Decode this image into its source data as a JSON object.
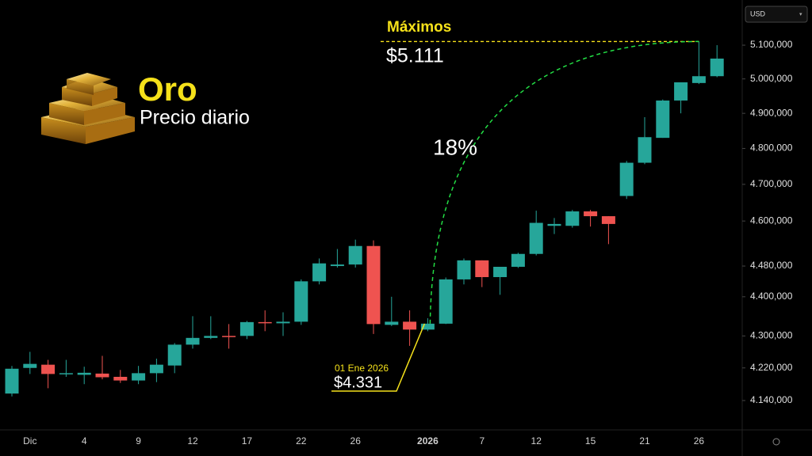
{
  "currency": "USD",
  "chart_data": {
    "type": "candlestick",
    "title": "Oro",
    "subtitle": "Precio diario",
    "log_scale": true,
    "up_color": "#26a69a",
    "down_color": "#ef5350",
    "categories": [
      null,
      "Dic",
      null,
      null,
      "4",
      null,
      null,
      "9",
      null,
      null,
      "12",
      null,
      null,
      "17",
      null,
      null,
      "22",
      null,
      null,
      "26",
      null,
      null,
      null,
      "2026",
      null,
      null,
      "7",
      null,
      null,
      "12",
      null,
      null,
      "15",
      null,
      null,
      "21",
      null,
      null,
      "26",
      null
    ],
    "open": [
      4157,
      4220,
      4228,
      4205,
      4203,
      4206,
      4198,
      4189,
      4207,
      4226,
      4278,
      4295,
      4300,
      4300,
      4335,
      4332,
      4336,
      4440,
      4480,
      4484,
      4533,
      4328,
      4336,
      4316,
      4331,
      4445,
      4495,
      4451,
      4478,
      4512,
      4587,
      4587,
      4626,
      4613,
      4668,
      4760,
      4830,
      4937,
      4988,
      5008
    ],
    "high": [
      4225,
      4260,
      4240,
      4240,
      4223,
      4250,
      4215,
      4225,
      4243,
      4282,
      4350,
      4350,
      4330,
      4338,
      4365,
      4360,
      4445,
      4500,
      4525,
      4550,
      4548,
      4400,
      4365,
      4345,
      4450,
      4500,
      4495,
      4478,
      4515,
      4628,
      4608,
      4630,
      4630,
      4613,
      4765,
      4889,
      4940,
      4990,
      5111,
      5100
    ],
    "low": [
      4150,
      4205,
      4170,
      4198,
      4180,
      4192,
      4183,
      4180,
      4185,
      4207,
      4268,
      4292,
      4268,
      4292,
      4312,
      4300,
      4328,
      4432,
      4476,
      4476,
      4305,
      4325,
      4275,
      4312,
      4330,
      4432,
      4425,
      4405,
      4475,
      4508,
      4565,
      4582,
      4585,
      4538,
      4660,
      4756,
      4830,
      4900,
      4985,
      5005
    ],
    "close": [
      4218,
      4230,
      4205,
      4207,
      4208,
      4197,
      4189,
      4207,
      4228,
      4278,
      4295,
      4300,
      4297,
      4335,
      4332,
      4336,
      4440,
      4487,
      4484,
      4533,
      4330,
      4336,
      4316,
      4331,
      4445,
      4495,
      4451,
      4478,
      4512,
      4595,
      4592,
      4626,
      4613,
      4592,
      4760,
      4832,
      4937,
      4990,
      5008,
      5060
    ],
    "ylim": [
      4075,
      5237
    ],
    "yticks": [
      {
        "value": 5100,
        "label": "5.100,000"
      },
      {
        "value": 5000,
        "label": "5.000,000"
      },
      {
        "value": 4900,
        "label": "4.900,000"
      },
      {
        "value": 4800,
        "label": "4.800,000"
      },
      {
        "value": 4700,
        "label": "4.700,000"
      },
      {
        "value": 4600,
        "label": "4.600,000"
      },
      {
        "value": 4480,
        "label": "4.480,000"
      },
      {
        "value": 4400,
        "label": "4.400,000"
      },
      {
        "value": 4300,
        "label": "4.300,000"
      },
      {
        "value": 4220,
        "label": "4.220,000"
      },
      {
        "value": 4140,
        "label": "4.140,000"
      }
    ],
    "annotations": {
      "high_title": "Máximos",
      "high": {
        "value": 5111,
        "label": "$5.111"
      },
      "change": "18%",
      "start_date": "01 Ene 2026",
      "start": {
        "value": 4331,
        "label": "$4.331"
      }
    }
  }
}
